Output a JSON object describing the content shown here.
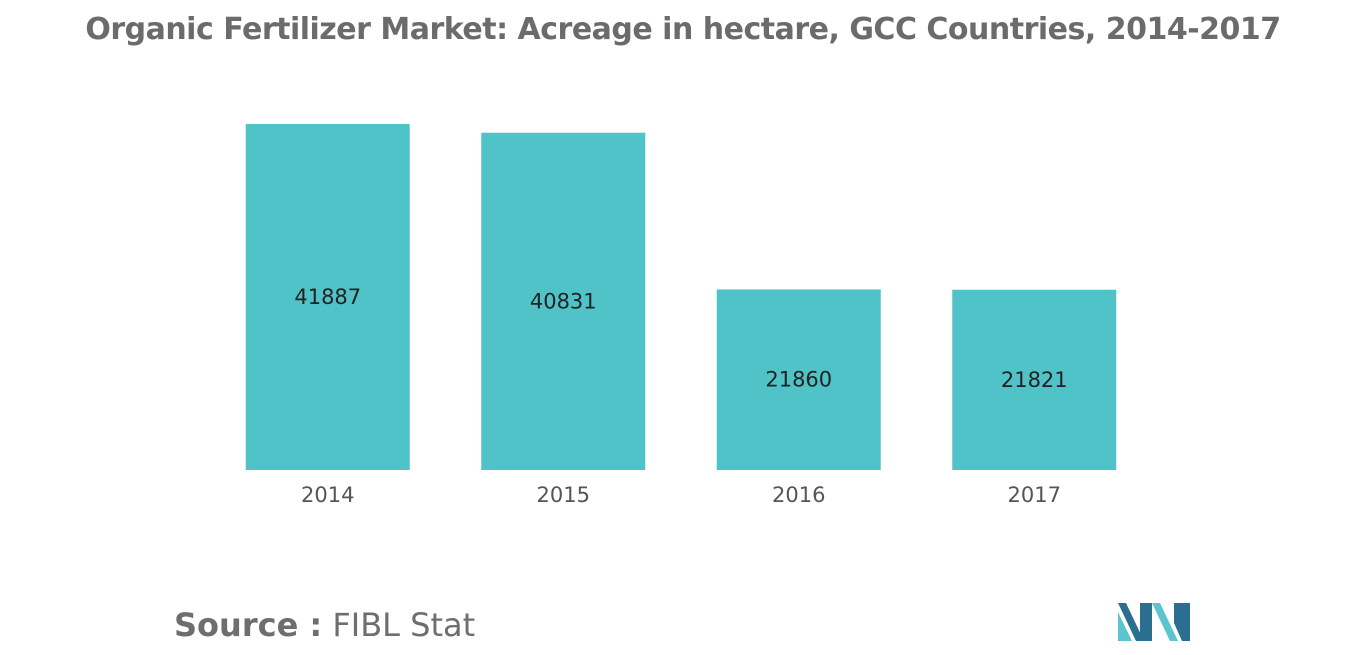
{
  "title": "Organic Fertilizer Market: Acreage in hectare, GCC Countries, 2014-2017",
  "source": {
    "label": "Source :",
    "value": "FIBL Stat"
  },
  "colors": {
    "bar": "#50c3c8",
    "title": "#6b6b6b",
    "tick": "#555555",
    "value_label": "#222222",
    "logo_dark": "#2a6f8f",
    "logo_light": "#5cc4cc"
  },
  "logo": {
    "icon": "mordor-intelligence-logo-icon"
  },
  "chart_data": {
    "type": "bar",
    "title": "Organic Fertilizer Market: Acreage in hectare, GCC Countries, 2014-2017",
    "categories": [
      "2014",
      "2015",
      "2016",
      "2017"
    ],
    "values": [
      41887,
      40831,
      21860,
      21821
    ],
    "data_labels": [
      "41887",
      "40831",
      "21860",
      "21821"
    ],
    "xlabel": "",
    "ylabel": "",
    "ylim": [
      0,
      41887
    ],
    "grid": false,
    "legend": "none"
  }
}
